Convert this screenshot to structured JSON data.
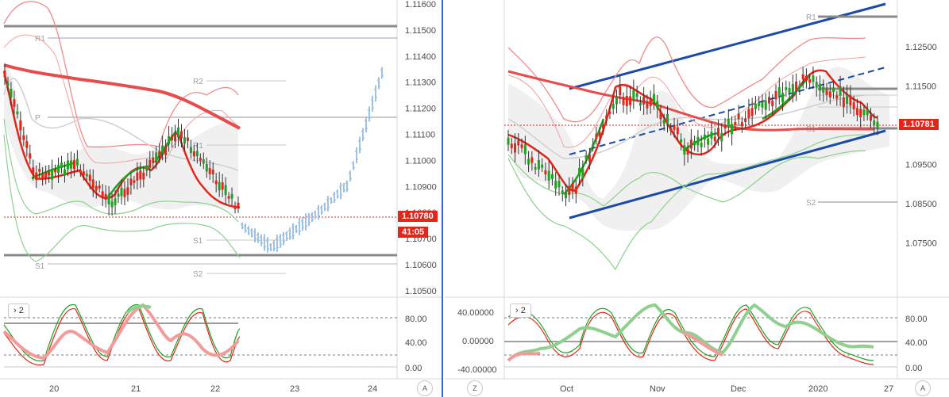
{
  "left": {
    "price_axis": [
      "1.11600",
      "1.11500",
      "1.11400",
      "1.11300",
      "1.11200",
      "1.11100",
      "1.11000",
      "1.10900",
      "1.10800",
      "1.10700",
      "1.10600",
      "1.10500"
    ],
    "last_price": "1.10780",
    "countdown": "41:05",
    "levels": [
      "R1",
      "R2",
      "P",
      "R1",
      "S1",
      "S1",
      "S2"
    ],
    "time_axis": [
      "20",
      "21",
      "22",
      "23",
      "24"
    ],
    "osc_axis": [
      "80.00",
      "40.00",
      "0.00"
    ],
    "osc_tag": "2",
    "a_button": "A"
  },
  "right": {
    "price_axis": [
      "1.12500",
      "1.11500",
      "1.10500",
      "1.09500",
      "1.08500",
      "1.07500"
    ],
    "last_price": "1.10781",
    "levels": [
      "R1",
      "S1",
      "S2"
    ],
    "time_axis": [
      "Oct",
      "Nov",
      "Dec",
      "2020",
      "27"
    ],
    "osc_axis_left": [
      "40.00000",
      "0.00000",
      "-40.00000"
    ],
    "osc_axis_right": [
      "80.00",
      "40.00",
      "0.00"
    ],
    "osc_tag": "2",
    "z_button": "Z",
    "a_button": "A"
  },
  "colors": {
    "bull": "#22a022",
    "bear": "#e0271b",
    "projection": "#9fc2e3",
    "channel": "#1b4aa8",
    "upper_band": "#ef8a8a",
    "lower_band": "#8fd08f"
  }
}
